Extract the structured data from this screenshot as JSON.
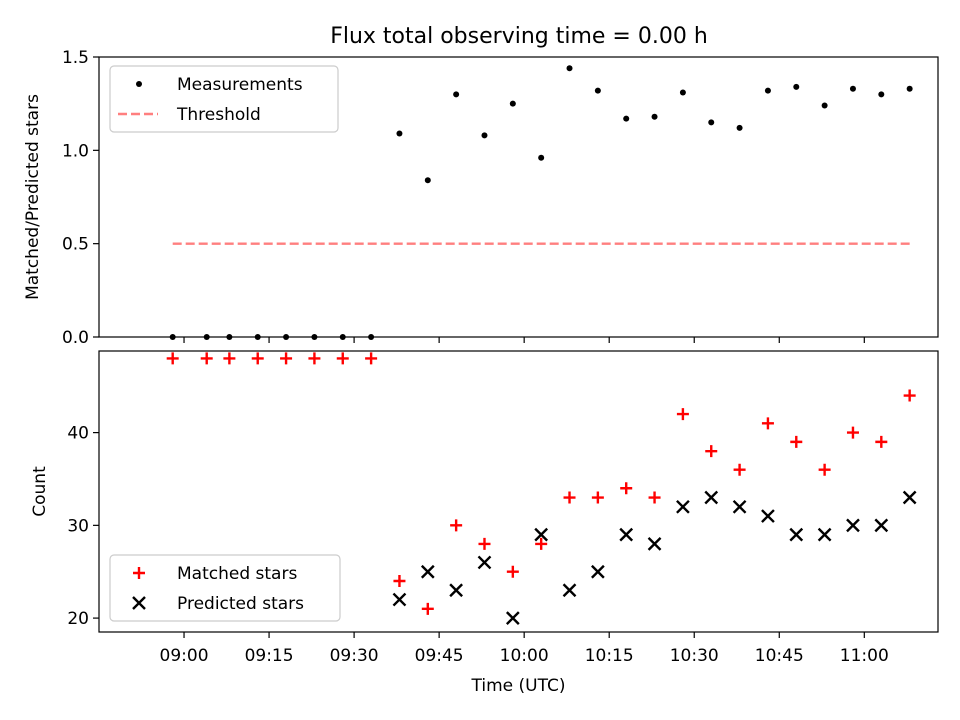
{
  "figure": {
    "title": "Flux total observing time = 0.00 h"
  },
  "chart_data": [
    {
      "type": "scatter",
      "title": "Flux total observing time = 0.00 h",
      "xlabel": "",
      "ylabel": "Matched/Predicted stars",
      "ylim": [
        0,
        1.5
      ],
      "xlim": [
        "08:45",
        "11:13"
      ],
      "yticks": [
        "0.0",
        "0.5",
        "1.0",
        "1.5"
      ],
      "legend_position": "top-left",
      "series": [
        {
          "name": "Measurements",
          "marker": "dot",
          "color": "#000000",
          "x": [
            "08:58",
            "09:04",
            "09:08",
            "09:13",
            "09:18",
            "09:23",
            "09:28",
            "09:33",
            "09:38",
            "09:43",
            "09:48",
            "09:53",
            "09:58",
            "10:03",
            "10:08",
            "10:13",
            "10:18",
            "10:23",
            "10:28",
            "10:33",
            "10:38",
            "10:43",
            "10:48",
            "10:53",
            "10:58",
            "11:03",
            "11:08"
          ],
          "y": [
            0,
            0,
            0,
            0,
            0,
            0,
            0,
            0,
            1.09,
            0.84,
            1.3,
            1.08,
            1.25,
            0.96,
            1.44,
            1.32,
            1.17,
            1.18,
            1.31,
            1.15,
            1.12,
            1.32,
            1.34,
            1.24,
            1.33,
            1.3,
            1.33
          ]
        },
        {
          "name": "Threshold",
          "line": "dashed",
          "color": "#ff7f7f",
          "x": [
            "08:58",
            "11:08"
          ],
          "y": [
            0.5,
            0.5
          ]
        }
      ]
    },
    {
      "type": "scatter",
      "title": "",
      "xlabel": "Time (UTC)",
      "ylabel": "Count",
      "ylim": [
        18.5,
        48.8
      ],
      "xlim": [
        "08:45",
        "11:13"
      ],
      "yticks": [
        "20",
        "30",
        "40"
      ],
      "xticks": [
        "09:00",
        "09:15",
        "09:30",
        "09:45",
        "10:00",
        "10:15",
        "10:30",
        "10:45",
        "11:00"
      ],
      "legend_position": "bottom-left",
      "series": [
        {
          "name": "Matched stars",
          "marker": "plus",
          "color": "#ff0000",
          "x": [
            "08:58",
            "09:04",
            "09:08",
            "09:13",
            "09:18",
            "09:23",
            "09:28",
            "09:33",
            "09:38",
            "09:43",
            "09:48",
            "09:53",
            "09:58",
            "10:03",
            "10:08",
            "10:13",
            "10:18",
            "10:23",
            "10:28",
            "10:33",
            "10:38",
            "10:43",
            "10:48",
            "10:53",
            "10:58",
            "11:03",
            "11:08"
          ],
          "y": [
            48,
            48,
            48,
            48,
            48,
            48,
            48,
            48,
            24,
            21,
            30,
            28,
            25,
            28,
            33,
            33,
            34,
            33,
            42,
            38,
            36,
            41,
            39,
            36,
            40,
            39,
            44
          ]
        },
        {
          "name": "Predicted stars",
          "marker": "x",
          "color": "#000000",
          "x": [
            "09:38",
            "09:43",
            "09:48",
            "09:53",
            "09:58",
            "10:03",
            "10:08",
            "10:13",
            "10:18",
            "10:23",
            "10:28",
            "10:33",
            "10:38",
            "10:43",
            "10:48",
            "10:53",
            "10:58",
            "11:03",
            "11:08"
          ],
          "y": [
            22,
            25,
            23,
            26,
            20,
            29,
            23,
            25,
            29,
            28,
            32,
            33,
            32,
            31,
            29,
            29,
            30,
            30,
            33
          ]
        }
      ]
    }
  ]
}
